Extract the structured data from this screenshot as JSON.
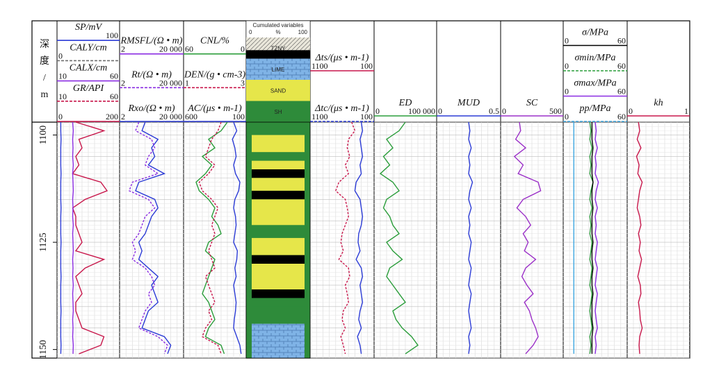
{
  "depth_label": {
    "chars": [
      "深",
      "度",
      "/",
      "m"
    ]
  },
  "tracks": [
    {
      "headers": [
        {
          "text": "SP/mV",
          "color": "#2b3bd6",
          "scale": [
            "",
            "100"
          ]
        },
        {
          "text": "CALY/cm",
          "color": "#6f6f6f",
          "scale": [
            "0",
            ""
          ]
        },
        {
          "text": "CALX/cm",
          "color": "#8a2be2",
          "scale": [
            "10",
            "60"
          ]
        },
        {
          "text": "GR/API",
          "color": "#c8174b",
          "scale": [
            "10",
            "60"
          ]
        },
        {
          "text": "",
          "color": "#c8174b",
          "scale": [
            "0",
            "200"
          ]
        }
      ]
    },
    {
      "headers": [
        {
          "text": "RMSFL/(Ω • m)",
          "color": "#8a2be2",
          "scale": [
            "2",
            "20 000"
          ]
        },
        {
          "text": "Rt/(Ω • m)",
          "color": "#8a2be2",
          "scale": [
            "2",
            "20 000"
          ]
        },
        {
          "text": "Rxo/(Ω • m)",
          "color": "#2b3bd6",
          "scale": [
            "2",
            "20 000"
          ]
        }
      ]
    },
    {
      "headers": [
        {
          "text": "CNL/%",
          "color": "#2a9d3a",
          "scale": [
            "60",
            "0"
          ]
        },
        {
          "text": "DEN/(g • cm-3)",
          "color": "#c8174b",
          "scale": [
            "1",
            "3"
          ]
        },
        {
          "text": "AC/(μs • m-1)",
          "color": "#2b3bd6",
          "scale": [
            "600",
            "100"
          ]
        }
      ]
    },
    {
      "headers": [
        {
          "text": "Δts/(μs • m-1)",
          "color": "#c8174b",
          "scale": [
            "1100",
            "100"
          ]
        },
        {
          "text": "Δtc/(μs • m-1)",
          "color": "#2b3bd6",
          "scale": [
            "1100",
            "100"
          ]
        }
      ]
    },
    {
      "headers": [
        {
          "text": "ED",
          "color": "#2a9d3a",
          "scale": [
            "0",
            "100 000"
          ]
        }
      ]
    },
    {
      "headers": [
        {
          "text": "MUD",
          "color": "#2b3bd6",
          "scale": [
            "0",
            "0.5"
          ]
        }
      ]
    },
    {
      "headers": [
        {
          "text": "SC",
          "color": "#9b30c8",
          "scale": [
            "0",
            "500"
          ]
        }
      ]
    },
    {
      "headers": [
        {
          "text": "σ/MPa",
          "color": "#000000",
          "scale": [
            "0",
            "60"
          ]
        },
        {
          "text": "σmin/MPa",
          "color": "#2a9d3a",
          "scale": [
            "0",
            "60"
          ]
        },
        {
          "text": "σmax/MPa",
          "color": "#8a2be2",
          "scale": [
            "0",
            "60"
          ]
        },
        {
          "text": "pp/MPa",
          "color": "#3fa7e0",
          "scale": [
            "0",
            "60"
          ]
        }
      ]
    },
    {
      "headers": [
        {
          "text": "kh",
          "color": "#c8174b",
          "scale": [
            "0",
            "1"
          ]
        }
      ]
    }
  ],
  "lithology_legend": {
    "title": "Cumulated variables",
    "scale": [
      "0",
      "%",
      "100"
    ],
    "items": [
      "TZNY",
      "LIME",
      "SAND",
      "SH"
    ]
  },
  "chart_data": {
    "type": "line",
    "title": "",
    "ylabel": "深度/m",
    "ylim": [
      1097,
      1152
    ],
    "yticks": [
      1100,
      1125,
      1150
    ],
    "depth": [
      1097,
      1099,
      1101,
      1103,
      1105,
      1107,
      1109,
      1111,
      1113,
      1115,
      1117,
      1119,
      1121,
      1123,
      1125,
      1127,
      1129,
      1131,
      1133,
      1135,
      1137,
      1139,
      1141,
      1143,
      1145,
      1147,
      1149,
      1151
    ],
    "series": [
      {
        "name": "GR",
        "track": 0,
        "range": [
          0,
          200
        ],
        "color": "#c8174b",
        "values": [
          60,
          150,
          70,
          80,
          60,
          70,
          50,
          140,
          160,
          90,
          50,
          60,
          60,
          70,
          80,
          60,
          150,
          90,
          60,
          70,
          80,
          60,
          60,
          70,
          80,
          150,
          140,
          70
        ]
      },
      {
        "name": "CALX",
        "track": 0,
        "range": [
          0,
          200
        ],
        "color": "#8a2be2",
        "values": [
          50,
          52,
          50,
          51,
          50,
          52,
          50,
          51,
          52,
          50,
          51,
          50,
          52,
          50,
          51,
          52,
          50,
          51,
          50,
          52,
          50,
          51,
          52,
          50,
          51,
          50,
          52,
          51
        ]
      },
      {
        "name": "SP",
        "track": 0,
        "range": [
          0,
          200
        ],
        "color": "#2b3bd6",
        "values": [
          12,
          12,
          13,
          12,
          12,
          12,
          13,
          12,
          12,
          12,
          13,
          12,
          12,
          12,
          13,
          12,
          12,
          12,
          13,
          12,
          12,
          12,
          13,
          12,
          12,
          12,
          13,
          12
        ]
      },
      {
        "name": "Rt",
        "track": 1,
        "range": [
          0,
          100
        ],
        "color": "#2b3bd6",
        "values": [
          40,
          35,
          60,
          50,
          55,
          45,
          70,
          30,
          25,
          55,
          60,
          50,
          45,
          40,
          30,
          35,
          30,
          45,
          60,
          50,
          55,
          60,
          45,
          40,
          35,
          70,
          80,
          75
        ]
      },
      {
        "name": "RMSFL",
        "track": 1,
        "range": [
          0,
          100
        ],
        "color": "#8a2be2",
        "values": [
          30,
          25,
          50,
          55,
          45,
          40,
          60,
          20,
          15,
          45,
          55,
          40,
          35,
          30,
          20,
          25,
          20,
          40,
          50,
          55,
          45,
          50,
          40,
          35,
          30,
          60,
          75,
          70
        ]
      },
      {
        "name": "CNL",
        "track": 2,
        "range": [
          0,
          100
        ],
        "color": "#2a9d3a",
        "values": [
          70,
          60,
          40,
          50,
          30,
          45,
          35,
          20,
          25,
          40,
          50,
          45,
          55,
          60,
          40,
          35,
          50,
          45,
          40,
          35,
          30,
          40,
          45,
          50,
          40,
          35,
          60,
          65
        ]
      },
      {
        "name": "DEN",
        "track": 2,
        "range": [
          0,
          100
        ],
        "color": "#c8174b",
        "values": [
          60,
          55,
          45,
          40,
          35,
          50,
          40,
          25,
          30,
          45,
          55,
          50,
          45,
          50,
          45,
          40,
          45,
          50,
          35,
          40,
          45,
          50,
          40,
          45,
          35,
          30,
          55,
          60
        ]
      },
      {
        "name": "AC",
        "track": 2,
        "range": [
          0,
          100
        ],
        "color": "#2b3bd6",
        "values": [
          80,
          85,
          78,
          82,
          84,
          80,
          83,
          90,
          88,
          82,
          80,
          83,
          84,
          82,
          80,
          86,
          85,
          82,
          84,
          80,
          82,
          84,
          83,
          81,
          80,
          85,
          90,
          92
        ]
      },
      {
        "name": "Δts",
        "track": 3,
        "range": [
          0,
          100
        ],
        "color": "#c8174b",
        "values": [
          65,
          70,
          60,
          58,
          62,
          55,
          60,
          45,
          40,
          55,
          58,
          60,
          55,
          50,
          48,
          52,
          45,
          60,
          62,
          55,
          58,
          60,
          52,
          50,
          55,
          48,
          52,
          55
        ]
      },
      {
        "name": "Δtc",
        "track": 3,
        "range": [
          0,
          100
        ],
        "color": "#2b3bd6",
        "values": [
          80,
          82,
          78,
          80,
          82,
          78,
          80,
          72,
          70,
          78,
          80,
          82,
          80,
          76,
          75,
          78,
          72,
          80,
          82,
          78,
          80,
          82,
          78,
          76,
          80,
          74,
          78,
          80
        ]
      },
      {
        "name": "ED",
        "track": 4,
        "range": [
          0,
          100000
        ],
        "color": "#2a9d3a",
        "values": [
          50000,
          40000,
          20000,
          30000,
          15000,
          25000,
          10000,
          30000,
          40000,
          20000,
          15000,
          25000,
          30000,
          40000,
          20000,
          30000,
          45000,
          25000,
          20000,
          30000,
          40000,
          50000,
          30000,
          35000,
          45000,
          60000,
          70000,
          50000
        ]
      },
      {
        "name": "MUD",
        "track": 5,
        "range": [
          0,
          0.5
        ],
        "color": "#2b3bd6",
        "values": [
          0.25,
          0.26,
          0.25,
          0.27,
          0.25,
          0.26,
          0.25,
          0.28,
          0.26,
          0.25,
          0.27,
          0.25,
          0.26,
          0.25,
          0.27,
          0.26,
          0.25,
          0.27,
          0.26,
          0.25,
          0.27,
          0.26,
          0.25,
          0.26,
          0.27,
          0.25,
          0.26,
          0.25
        ]
      },
      {
        "name": "SC",
        "track": 6,
        "range": [
          0,
          500
        ],
        "color": "#9b30c8",
        "values": [
          150,
          160,
          120,
          200,
          110,
          180,
          140,
          300,
          320,
          180,
          130,
          200,
          240,
          180,
          220,
          190,
          280,
          200,
          170,
          210,
          260,
          190,
          230,
          250,
          280,
          300,
          260,
          200
        ]
      },
      {
        "name": "σmin",
        "track": 7,
        "range": [
          0,
          60
        ],
        "color": "#2a9d3a",
        "values": [
          25,
          26,
          25,
          27,
          25,
          26,
          25,
          28,
          26,
          25,
          27,
          25,
          26,
          25,
          27,
          26,
          25,
          27,
          26,
          25,
          27,
          26,
          25,
          26,
          27,
          25,
          26,
          25
        ]
      },
      {
        "name": "σmax",
        "track": 7,
        "range": [
          0,
          60
        ],
        "color": "#8a2be2",
        "values": [
          30,
          31,
          30,
          32,
          30,
          31,
          30,
          33,
          31,
          30,
          32,
          30,
          31,
          30,
          32,
          31,
          30,
          32,
          31,
          30,
          32,
          31,
          30,
          31,
          32,
          30,
          31,
          30
        ]
      },
      {
        "name": "σ",
        "track": 7,
        "range": [
          0,
          60
        ],
        "color": "#000000",
        "values": [
          27,
          27,
          27,
          28,
          27,
          27,
          27,
          28,
          27,
          27,
          28,
          27,
          27,
          27,
          28,
          27,
          27,
          28,
          27,
          27,
          28,
          27,
          27,
          27,
          28,
          27,
          27,
          27
        ]
      },
      {
        "name": "pp",
        "track": 7,
        "range": [
          0,
          60
        ],
        "color": "#3fa7e0",
        "values": [
          10,
          10,
          10,
          10,
          10,
          10,
          10,
          10,
          10,
          10,
          10,
          10,
          10,
          10,
          10,
          10,
          10,
          10,
          10,
          10,
          10,
          10,
          10,
          10,
          10,
          10,
          10,
          10
        ]
      },
      {
        "name": "kh",
        "track": 8,
        "range": [
          0,
          1
        ],
        "color": "#c8174b",
        "values": [
          0.18,
          0.2,
          0.16,
          0.22,
          0.15,
          0.19,
          0.17,
          0.24,
          0.2,
          0.18,
          0.16,
          0.2,
          0.22,
          0.18,
          0.21,
          0.19,
          0.23,
          0.2,
          0.17,
          0.21,
          0.22,
          0.18,
          0.2,
          0.21,
          0.24,
          0.2,
          0.19,
          0.2
        ]
      }
    ],
    "lithology": [
      {
        "from": 1097,
        "to": 1100,
        "type": "SH"
      },
      {
        "from": 1100,
        "to": 1104,
        "type": "SAND"
      },
      {
        "from": 1104,
        "to": 1106,
        "type": "SH"
      },
      {
        "from": 1106,
        "to": 1108,
        "type": "SAND"
      },
      {
        "from": 1108,
        "to": 1110,
        "type": "TZNY"
      },
      {
        "from": 1110,
        "to": 1113,
        "type": "SAND"
      },
      {
        "from": 1113,
        "to": 1115,
        "type": "TZNY"
      },
      {
        "from": 1115,
        "to": 1121,
        "type": "SAND"
      },
      {
        "from": 1121,
        "to": 1124,
        "type": "SH"
      },
      {
        "from": 1124,
        "to": 1128,
        "type": "SAND"
      },
      {
        "from": 1128,
        "to": 1130,
        "type": "TZNY"
      },
      {
        "from": 1130,
        "to": 1136,
        "type": "SAND"
      },
      {
        "from": 1136,
        "to": 1138,
        "type": "TZNY"
      },
      {
        "from": 1138,
        "to": 1140,
        "type": "SH"
      },
      {
        "from": 1140,
        "to": 1144,
        "type": "SH"
      },
      {
        "from": 1144,
        "to": 1152,
        "type": "LIME"
      }
    ]
  }
}
